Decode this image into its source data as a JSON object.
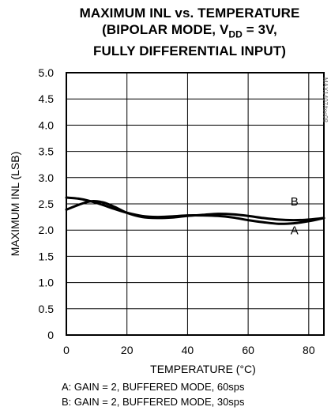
{
  "chart_data": {
    "type": "line",
    "title_lines": [
      "MAXIMUM INL vs. TEMPERATURE",
      "(BIPOLAR MODE, V",
      "= 3V,",
      "FULLY DIFFERENTIAL INPUT)"
    ],
    "title_subscript": "DD",
    "xlabel": "TEMPERATURE (°C)",
    "ylabel": "MAXIMUM INL (LSB)",
    "xlim": [
      0,
      85
    ],
    "ylim": [
      0,
      5.0
    ],
    "x_ticks": [
      0,
      20,
      40,
      60,
      80
    ],
    "y_ticks": [
      "0",
      "0.5",
      "1.0",
      "1.5",
      "2.0",
      "2.5",
      "3.0",
      "3.5",
      "4.0",
      "4.5",
      "5.0"
    ],
    "grid": true,
    "series": [
      {
        "name": "A",
        "x": [
          0,
          4,
          8,
          12,
          16,
          20,
          25,
          30,
          35,
          40,
          45,
          50,
          55,
          60,
          65,
          70,
          75,
          80,
          85
        ],
        "values": [
          2.62,
          2.6,
          2.55,
          2.48,
          2.4,
          2.33,
          2.27,
          2.25,
          2.26,
          2.28,
          2.28,
          2.27,
          2.24,
          2.19,
          2.15,
          2.12,
          2.13,
          2.17,
          2.23
        ]
      },
      {
        "name": "B",
        "x": [
          0,
          4,
          8,
          12,
          16,
          20,
          25,
          30,
          35,
          40,
          45,
          50,
          55,
          60,
          65,
          70,
          75,
          80,
          85
        ],
        "values": [
          2.39,
          2.48,
          2.55,
          2.53,
          2.44,
          2.33,
          2.25,
          2.23,
          2.24,
          2.27,
          2.29,
          2.31,
          2.3,
          2.27,
          2.23,
          2.2,
          2.19,
          2.2,
          2.23
        ]
      }
    ],
    "annotations": [
      "A",
      "B"
    ],
    "legend_lines": [
      "A: GAIN = 2, BUFFERED MODE, 60sps",
      "B: GAIN = 2, BUFFERED MODE, 30sps"
    ],
    "watermark": "MAX1407/toc08"
  }
}
